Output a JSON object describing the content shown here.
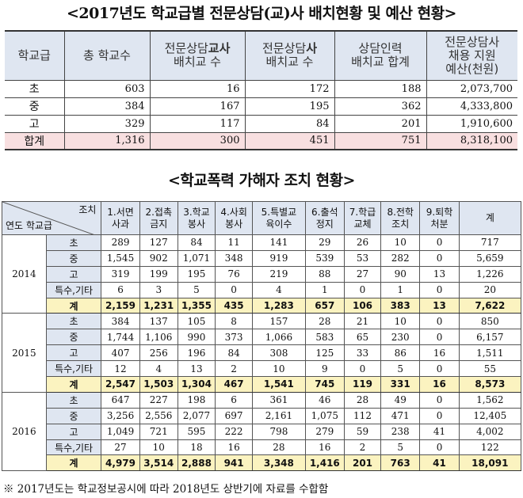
{
  "title1": "<2017년도 학교급별 전문상담(교)사 배치현황 및 예산 현황>",
  "t1": {
    "headers": [
      {
        "a": "학교급",
        "b": ""
      },
      {
        "a": "총 학교수",
        "b": ""
      },
      {
        "a": "전문상담",
        "bold": "교사",
        "b": "배치교 수"
      },
      {
        "a": "전문상담",
        "bold": "사",
        "b": "배치교 수"
      },
      {
        "a": "상담인력",
        "b": "배치교 합계"
      },
      {
        "a": "전문상담사",
        "b": "채용 지원",
        "c": "예산(천원)"
      }
    ],
    "rows": [
      {
        "level": "초",
        "schools": "603",
        "teacher": "16",
        "counselor": "172",
        "total": "188",
        "budget": "2,073,700"
      },
      {
        "level": "중",
        "schools": "384",
        "teacher": "167",
        "counselor": "195",
        "total": "362",
        "budget": "4,333,800"
      },
      {
        "level": "고",
        "schools": "329",
        "teacher": "117",
        "counselor": "84",
        "total": "201",
        "budget": "1,910,600"
      },
      {
        "level": "합계",
        "schools": "1,316",
        "teacher": "300",
        "counselor": "451",
        "total": "751",
        "budget": "8,318,100"
      }
    ]
  },
  "title2": "<학교폭력 가해자 조치 현황>",
  "t2": {
    "corner_top": "조치",
    "corner_bottom": "연도 학교급",
    "cols": [
      [
        "1.서면",
        "사과"
      ],
      [
        "2.접촉",
        "금지"
      ],
      [
        "3.학교",
        "봉사"
      ],
      [
        "4.사회",
        "봉사"
      ],
      [
        "5.특별교",
        "육이수"
      ],
      [
        "6.출석",
        "정지"
      ],
      [
        "7.학급",
        "교체"
      ],
      [
        "8.전학",
        "조치"
      ],
      [
        "9.퇴학",
        "처분"
      ],
      [
        "계",
        ""
      ]
    ],
    "years": [
      {
        "year": "2014",
        "rows": [
          {
            "label": "초",
            "v": [
              "289",
              "127",
              "84",
              "11",
              "141",
              "29",
              "26",
              "10",
              "0",
              "717"
            ]
          },
          {
            "label": "중",
            "v": [
              "1,545",
              "902",
              "1,071",
              "348",
              "919",
              "539",
              "53",
              "282",
              "0",
              "5,659"
            ]
          },
          {
            "label": "고",
            "v": [
              "319",
              "199",
              "195",
              "76",
              "219",
              "88",
              "27",
              "90",
              "13",
              "1,226"
            ]
          },
          {
            "label": "특수,기타",
            "v": [
              "6",
              "3",
              "5",
              "0",
              "4",
              "1",
              "0",
              "1",
              "0",
              "20"
            ]
          },
          {
            "label": "계",
            "v": [
              "2,159",
              "1,231",
              "1,355",
              "435",
              "1,283",
              "657",
              "106",
              "383",
              "13",
              "7,622"
            ]
          }
        ]
      },
      {
        "year": "2015",
        "rows": [
          {
            "label": "초",
            "v": [
              "384",
              "137",
              "105",
              "8",
              "157",
              "28",
              "21",
              "10",
              "0",
              "850"
            ]
          },
          {
            "label": "중",
            "v": [
              "1,744",
              "1,106",
              "990",
              "373",
              "1,066",
              "583",
              "65",
              "230",
              "0",
              "6,157"
            ]
          },
          {
            "label": "고",
            "v": [
              "407",
              "256",
              "196",
              "84",
              "308",
              "125",
              "33",
              "86",
              "16",
              "1,511"
            ]
          },
          {
            "label": "특수,기타",
            "v": [
              "12",
              "4",
              "13",
              "2",
              "10",
              "9",
              "0",
              "5",
              "0",
              "55"
            ]
          },
          {
            "label": "계",
            "v": [
              "2,547",
              "1,503",
              "1,304",
              "467",
              "1,541",
              "745",
              "119",
              "331",
              "16",
              "8,573"
            ]
          }
        ]
      },
      {
        "year": "2016",
        "rows": [
          {
            "label": "초",
            "v": [
              "647",
              "227",
              "198",
              "6",
              "361",
              "46",
              "28",
              "49",
              "0",
              "1,562"
            ]
          },
          {
            "label": "중",
            "v": [
              "3,256",
              "2,556",
              "2,077",
              "697",
              "2,161",
              "1,075",
              "112",
              "471",
              "0",
              "12,405"
            ]
          },
          {
            "label": "고",
            "v": [
              "1,049",
              "721",
              "595",
              "222",
              "798",
              "279",
              "59",
              "238",
              "41",
              "4,002"
            ]
          },
          {
            "label": "특수,기타",
            "v": [
              "27",
              "10",
              "18",
              "16",
              "28",
              "16",
              "2",
              "5",
              "0",
              "122"
            ]
          },
          {
            "label": "계",
            "v": [
              "4,979",
              "3,514",
              "2,888",
              "941",
              "3,348",
              "1,416",
              "201",
              "763",
              "41",
              "18,091"
            ]
          }
        ]
      }
    ]
  },
  "note": "※ 2017년도는 학교정보공시에 따라 2018년도 상반기에 자료를 수합함",
  "colors": {
    "header_bg": "#dfe6f1",
    "total_row_bg": "#f8dfe0",
    "sum_row_bg": "#fbf3c0"
  }
}
